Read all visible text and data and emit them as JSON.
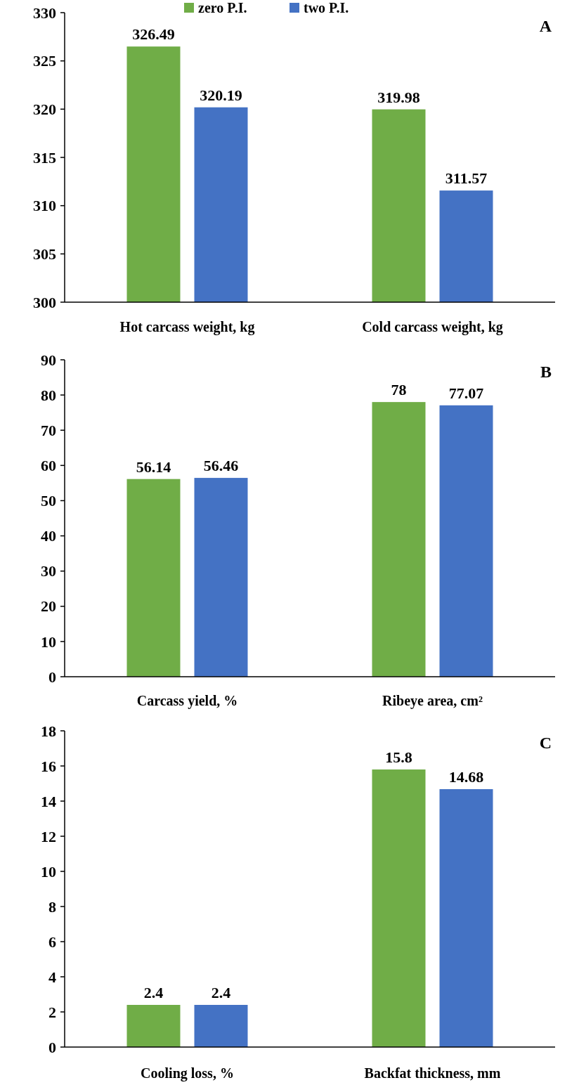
{
  "chart_data": [
    {
      "type": "bar",
      "title": "A",
      "categories": [
        "Hot carcass weight, kg",
        "Cold carcass weight, kg"
      ],
      "series": [
        {
          "name": "zero P.I.",
          "color": "#70ad47",
          "values": [
            326.49,
            319.98
          ]
        },
        {
          "name": "two P.I.",
          "color": "#4472c4",
          "values": [
            320.19,
            311.57
          ]
        }
      ],
      "ylim": [
        300,
        330
      ],
      "yticks": [
        300,
        305,
        310,
        315,
        320,
        325,
        330
      ],
      "data_labels": true,
      "legend": "top"
    },
    {
      "type": "bar",
      "title": "B",
      "categories": [
        "Carcass yield, %",
        "Ribeye area, cm²"
      ],
      "series": [
        {
          "color": "#70ad47",
          "values": [
            56.14,
            78
          ]
        },
        {
          "color": "#4472c4",
          "values": [
            56.46,
            77.07
          ]
        }
      ],
      "ylim": [
        0,
        90
      ],
      "yticks": [
        0,
        10,
        20,
        30,
        40,
        50,
        60,
        70,
        80,
        90
      ],
      "data_labels": true
    },
    {
      "type": "bar",
      "title": "C",
      "categories": [
        "Cooling loss, %",
        "Backfat thickness, mm"
      ],
      "series": [
        {
          "color": "#70ad47",
          "values": [
            2.4,
            15.8
          ]
        },
        {
          "color": "#4472c4",
          "values": [
            2.4,
            14.68
          ]
        }
      ],
      "ylim": [
        0,
        18
      ],
      "yticks": [
        0,
        2,
        4,
        6,
        8,
        10,
        12,
        14,
        16,
        18
      ],
      "data_labels": true
    }
  ]
}
